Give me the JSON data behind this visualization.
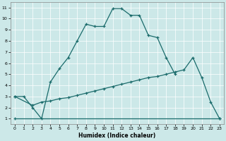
{
  "xlabel": "Humidex (Indice chaleur)",
  "bg_color": "#cce8e8",
  "line_color": "#1a6b6b",
  "grid_color": "#ffffff",
  "xlim": [
    -0.5,
    23.5
  ],
  "ylim": [
    0.5,
    11.5
  ],
  "yticks": [
    1,
    2,
    3,
    4,
    5,
    6,
    7,
    8,
    9,
    10,
    11
  ],
  "xticks": [
    0,
    1,
    2,
    3,
    4,
    5,
    6,
    7,
    8,
    9,
    10,
    11,
    12,
    13,
    14,
    15,
    16,
    17,
    18,
    19,
    20,
    21,
    22,
    23
  ],
  "line1_x": [
    0,
    1,
    2,
    3,
    4,
    5,
    6,
    7,
    8,
    9,
    10,
    11,
    12,
    13,
    14,
    15,
    16,
    17,
    18
  ],
  "line1_y": [
    3,
    3,
    2,
    1,
    4.3,
    5.5,
    6.5,
    8.0,
    9.5,
    9.3,
    9.3,
    10.9,
    10.9,
    10.3,
    10.3,
    8.5,
    8.3,
    6.5,
    5.0
  ],
  "line2_x": [
    0,
    2,
    3,
    4,
    5,
    6,
    7,
    8,
    9,
    10,
    11,
    12,
    13,
    14,
    15,
    16,
    17,
    18,
    19,
    20,
    21,
    22,
    23
  ],
  "line2_y": [
    3,
    2.2,
    2.5,
    2.6,
    2.8,
    2.9,
    3.1,
    3.3,
    3.5,
    3.7,
    3.9,
    4.1,
    4.3,
    4.5,
    4.7,
    4.8,
    5.0,
    5.2,
    5.4,
    6.5,
    4.7,
    2.5,
    1.0
  ],
  "line3_x": [
    0,
    23
  ],
  "line3_y": [
    1,
    1
  ]
}
